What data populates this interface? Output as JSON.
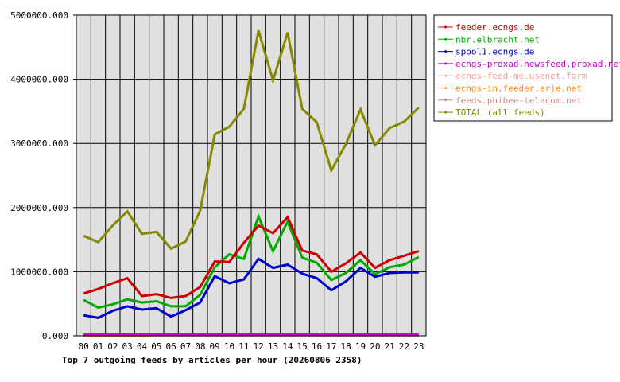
{
  "chart_data": {
    "type": "line",
    "title": "Top 7 outgoing feeds by articles per hour (20260806 2358)",
    "xlabel": "",
    "ylabel": "",
    "categories": [
      "00",
      "01",
      "02",
      "03",
      "04",
      "05",
      "06",
      "07",
      "08",
      "09",
      "10",
      "11",
      "12",
      "13",
      "14",
      "15",
      "16",
      "17",
      "18",
      "19",
      "20",
      "21",
      "22",
      "23"
    ],
    "ylim": [
      0,
      5000000
    ],
    "yticks": [
      "0.000",
      "1000000.000",
      "2000000.000",
      "3000000.000",
      "4000000.000",
      "5000000.000"
    ],
    "grid": true,
    "legend_position": "top-right",
    "series": [
      {
        "name": "feeder.ecngs.de",
        "color": "#cc0000",
        "values": [
          660000,
          730000,
          820000,
          900000,
          620000,
          650000,
          590000,
          620000,
          760000,
          1160000,
          1150000,
          1450000,
          1720000,
          1600000,
          1850000,
          1330000,
          1270000,
          1000000,
          1130000,
          1300000,
          1060000,
          1180000,
          1250000,
          1320000
        ]
      },
      {
        "name": "nbr.elbracht.net",
        "color": "#00aa00",
        "values": [
          560000,
          440000,
          490000,
          570000,
          520000,
          540000,
          460000,
          460000,
          640000,
          1070000,
          1270000,
          1200000,
          1860000,
          1320000,
          1780000,
          1220000,
          1140000,
          870000,
          980000,
          1180000,
          960000,
          1070000,
          1110000,
          1230000
        ]
      },
      {
        "name": "spool1.ecngs.de",
        "color": "#0000cc",
        "values": [
          320000,
          280000,
          390000,
          460000,
          410000,
          430000,
          300000,
          400000,
          520000,
          930000,
          820000,
          880000,
          1200000,
          1060000,
          1110000,
          970000,
          900000,
          710000,
          850000,
          1060000,
          920000,
          980000,
          990000,
          990000
        ]
      },
      {
        "name": "ecngs-proxad.newsfeed.proxad.net",
        "color": "#cc00cc",
        "values": [
          20000,
          20000,
          20000,
          20000,
          20000,
          20000,
          20000,
          20000,
          20000,
          20000,
          20000,
          20000,
          20000,
          20000,
          20000,
          20000,
          20000,
          20000,
          20000,
          20000,
          20000,
          20000,
          20000,
          20000
        ]
      },
      {
        "name": "ecngs-feed-me.usenet.farm",
        "color": "#ff9999",
        "values": [
          20000,
          20000,
          20000,
          20000,
          20000,
          0,
          0,
          0,
          0,
          0,
          0,
          0,
          0,
          0,
          0,
          0,
          0,
          0,
          0,
          0,
          0,
          0,
          0,
          0
        ]
      },
      {
        "name": "ecngs-in.feeder.erje.net",
        "color": "#ff8800",
        "values": [
          0,
          0,
          0,
          0,
          0,
          0,
          0,
          0,
          0,
          0,
          0,
          0,
          0,
          0,
          0,
          0,
          0,
          0,
          0,
          0,
          0,
          0,
          0,
          0
        ]
      },
      {
        "name": "feeds.phibee-telecom.net",
        "color": "#cc8888",
        "values": [
          0,
          0,
          0,
          0,
          0,
          0,
          0,
          0,
          0,
          0,
          0,
          0,
          0,
          0,
          0,
          0,
          0,
          0,
          0,
          0,
          0,
          0,
          0,
          0
        ]
      },
      {
        "name": "TOTAL (all feeds)",
        "color": "#888800",
        "values": [
          1560000,
          1460000,
          1720000,
          1940000,
          1590000,
          1620000,
          1360000,
          1470000,
          1950000,
          3140000,
          3260000,
          3540000,
          4760000,
          3980000,
          4730000,
          3540000,
          3330000,
          2580000,
          2990000,
          3530000,
          2970000,
          3240000,
          3340000,
          3560000
        ]
      }
    ]
  }
}
